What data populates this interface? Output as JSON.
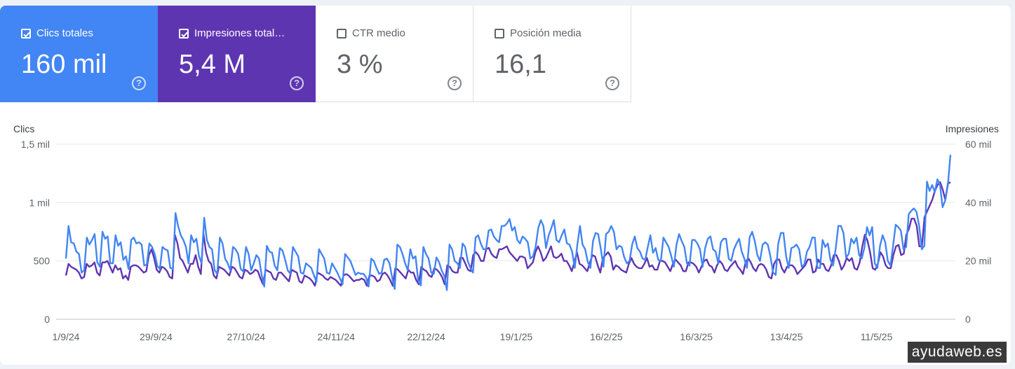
{
  "metrics": [
    {
      "label": "Clics totales",
      "value": "160 mil",
      "checked": true,
      "color": "#4285f4"
    },
    {
      "label": "Impresiones total…",
      "value": "5,4 M",
      "checked": true,
      "color": "#5e35b1"
    },
    {
      "label": "CTR medio",
      "value": "3 %",
      "checked": false
    },
    {
      "label": "Posición media",
      "value": "16,1",
      "checked": false
    }
  ],
  "help_icon": "?",
  "watermark": "ayudaweb.es",
  "chart_data": {
    "type": "line",
    "left_axis": {
      "title": "Clics",
      "ticks": [
        "0",
        "500",
        "1 mil",
        "1,5 mil"
      ],
      "ylim": [
        0,
        1500
      ]
    },
    "right_axis": {
      "title": "Impresiones",
      "ticks": [
        "0",
        "20 mil",
        "40 mil",
        "60 mil"
      ],
      "ylim": [
        0,
        60000
      ]
    },
    "x_ticks": [
      {
        "label": "1/9/24",
        "day": 0
      },
      {
        "label": "29/9/24",
        "day": 28
      },
      {
        "label": "27/10/24",
        "day": 56
      },
      {
        "label": "24/11/24",
        "day": 84
      },
      {
        "label": "22/12/24",
        "day": 112
      },
      {
        "label": "19/1/25",
        "day": 140
      },
      {
        "label": "16/2/25",
        "day": 168
      },
      {
        "label": "16/3/25",
        "day": 196
      },
      {
        "label": "13/4/25",
        "day": 224
      },
      {
        "label": "11/5/25",
        "day": 252
      }
    ],
    "x_range_days": [
      0,
      275
    ],
    "grid": true,
    "series": [
      {
        "name": "Clics",
        "axis": "left",
        "color": "#4285f4",
        "values": [
          520,
          800,
          660,
          650,
          580,
          560,
          400,
          420,
          700,
          640,
          680,
          730,
          490,
          450,
          750,
          690,
          710,
          480,
          480,
          720,
          630,
          660,
          510,
          540,
          430,
          680,
          700,
          650,
          660,
          640,
          460,
          470,
          650,
          620,
          560,
          460,
          430,
          620,
          600,
          590,
          440,
          430,
          910,
          800,
          720,
          680,
          620,
          480,
          720,
          660,
          690,
          540,
          480,
          870,
          680,
          620,
          600,
          420,
          390,
          700,
          650,
          520,
          480,
          420,
          620,
          600,
          560,
          430,
          410,
          620,
          560,
          420,
          480,
          550,
          520,
          380,
          280,
          630,
          580,
          570,
          460,
          420,
          610,
          590,
          510,
          420,
          390,
          620,
          580,
          540,
          400,
          390,
          480,
          460,
          440,
          380,
          320,
          600,
          560,
          520,
          400,
          390,
          480,
          440,
          400,
          350,
          300,
          560,
          530,
          500,
          440,
          380,
          400,
          390,
          390,
          360,
          280,
          520,
          500,
          440,
          390,
          400,
          510,
          520,
          480,
          360,
          260,
          640,
          620,
          560,
          480,
          420,
          600,
          520,
          540,
          330,
          290,
          620,
          560,
          520,
          400,
          390,
          530,
          490,
          420,
          370,
          250,
          640,
          600,
          500,
          480,
          440,
          650,
          620,
          500,
          440,
          400,
          700,
          720,
          650,
          600,
          600,
          760,
          770,
          710,
          680,
          660,
          800,
          800,
          820,
          860,
          760,
          790,
          680,
          650,
          710,
          690,
          660,
          520,
          540,
          620,
          780,
          850,
          800,
          610,
          720,
          780,
          850,
          680,
          660,
          720,
          770,
          650,
          640,
          580,
          440,
          640,
          800,
          640,
          600,
          490,
          440,
          670,
          740,
          730,
          600,
          450,
          730,
          750,
          800,
          750,
          600,
          630,
          620,
          530,
          480,
          500,
          640,
          710,
          610,
          580,
          520,
          510,
          620,
          720,
          570,
          610,
          510,
          500,
          700,
          660,
          620,
          540,
          450,
          640,
          730,
          670,
          620,
          480,
          460,
          680,
          680,
          650,
          600,
          450,
          610,
          690,
          710,
          600,
          580,
          480,
          660,
          690,
          690,
          520,
          500,
          600,
          650,
          690,
          580,
          520,
          440,
          700,
          750,
          670,
          550,
          500,
          640,
          660,
          640,
          540,
          400,
          380,
          650,
          740,
          740,
          540,
          440,
          610,
          620,
          640,
          600,
          450,
          470,
          580,
          620,
          700,
          700,
          440,
          440,
          680,
          620,
          650,
          510,
          460,
          600,
          800,
          800,
          740,
          530,
          560,
          690,
          650,
          700,
          550,
          520,
          610,
          790,
          720,
          790,
          480,
          440,
          630,
          720,
          660,
          500,
          460,
          630,
          810,
          790,
          760,
          600,
          620,
          900,
          930,
          950,
          920,
          800,
          600,
          630,
          1180,
          1100,
          1150,
          1090,
          1200,
          1150,
          960,
          1020,
          1150,
          1410
        ],
        "marker_size": 0
      },
      {
        "name": "Impresiones",
        "axis": "right",
        "color": "#5e35b1",
        "values": [
          15000,
          19000,
          18000,
          17500,
          17000,
          16000,
          14000,
          14500,
          19000,
          18000,
          18500,
          19500,
          16000,
          15000,
          19500,
          19500,
          20000,
          18000,
          16000,
          18500,
          17000,
          17500,
          14000,
          15000,
          13500,
          18000,
          18500,
          18500,
          18000,
          17000,
          16000,
          16500,
          22000,
          24000,
          21000,
          17000,
          16000,
          18000,
          17500,
          16500,
          14500,
          14000,
          29000,
          26000,
          21000,
          20000,
          18000,
          16000,
          19000,
          19000,
          22000,
          18000,
          15500,
          29500,
          23000,
          20000,
          19000,
          15000,
          14000,
          18000,
          17500,
          17000,
          16000,
          15000,
          18000,
          17500,
          16000,
          14500,
          14000,
          17000,
          16500,
          15500,
          16000,
          17000,
          16500,
          14000,
          12000,
          17000,
          16500,
          16000,
          14000,
          13500,
          16000,
          16000,
          15000,
          14000,
          13000,
          17000,
          16500,
          16000,
          13000,
          12500,
          15000,
          14500,
          14000,
          13000,
          11500,
          16000,
          15500,
          15000,
          14000,
          13500,
          14500,
          14000,
          13500,
          12500,
          11500,
          15000,
          15500,
          15000,
          14000,
          13000,
          13500,
          13500,
          14000,
          13500,
          11500,
          15000,
          15000,
          14500,
          13000,
          13500,
          15500,
          16000,
          15000,
          13500,
          11500,
          17500,
          17000,
          16000,
          15000,
          14000,
          17000,
          16000,
          16000,
          13500,
          12000,
          18000,
          17000,
          16500,
          15000,
          14500,
          17500,
          17000,
          16000,
          14500,
          12000,
          18500,
          18000,
          16500,
          16000,
          16000,
          21000,
          21000,
          19000,
          17000,
          16500,
          22000,
          23000,
          22000,
          20000,
          20000,
          24000,
          24500,
          22500,
          21500,
          21000,
          24000,
          24000,
          24500,
          25000,
          23000,
          22000,
          21000,
          20000,
          21500,
          21500,
          21000,
          17500,
          18500,
          19500,
          23000,
          25000,
          23000,
          20000,
          21000,
          23000,
          25000,
          21500,
          21000,
          21500,
          22500,
          20000,
          20000,
          18500,
          16500,
          19500,
          23000,
          19000,
          18500,
          17500,
          16500,
          19500,
          22000,
          21500,
          18500,
          16000,
          21000,
          22000,
          23000,
          21500,
          17000,
          18500,
          18000,
          17000,
          16500,
          16000,
          19000,
          21000,
          19000,
          18000,
          17500,
          17500,
          19000,
          21000,
          18000,
          18500,
          17000,
          17000,
          20000,
          20000,
          19500,
          18000,
          16500,
          19000,
          20500,
          19500,
          18500,
          16500,
          16500,
          19500,
          19500,
          19000,
          18000,
          16000,
          18000,
          20000,
          20500,
          18500,
          18000,
          16000,
          18500,
          20000,
          19000,
          17000,
          16500,
          18000,
          19000,
          20000,
          18000,
          17000,
          15500,
          19500,
          21000,
          19500,
          17500,
          16500,
          18500,
          19000,
          18500,
          17000,
          14500,
          14000,
          19000,
          20500,
          20500,
          17500,
          16000,
          18000,
          18500,
          18500,
          17500,
          15500,
          16500,
          17500,
          18500,
          20500,
          20500,
          16000,
          16500,
          20500,
          19000,
          19000,
          17000,
          16500,
          18500,
          22000,
          22000,
          20000,
          17000,
          18500,
          21000,
          20000,
          21000,
          17500,
          17000,
          19500,
          25000,
          29000,
          27000,
          23000,
          17500,
          17000,
          19000,
          23000,
          21500,
          18500,
          17500,
          17500,
          22000,
          25000,
          25500,
          22000,
          22500,
          29000,
          31000,
          34500,
          34500,
          32000,
          25000,
          25000,
          35000,
          37000,
          39000,
          41000,
          44000,
          46000,
          47000,
          44500,
          41000,
          46500,
          47000
        ],
        "marker_size": 0
      }
    ]
  }
}
